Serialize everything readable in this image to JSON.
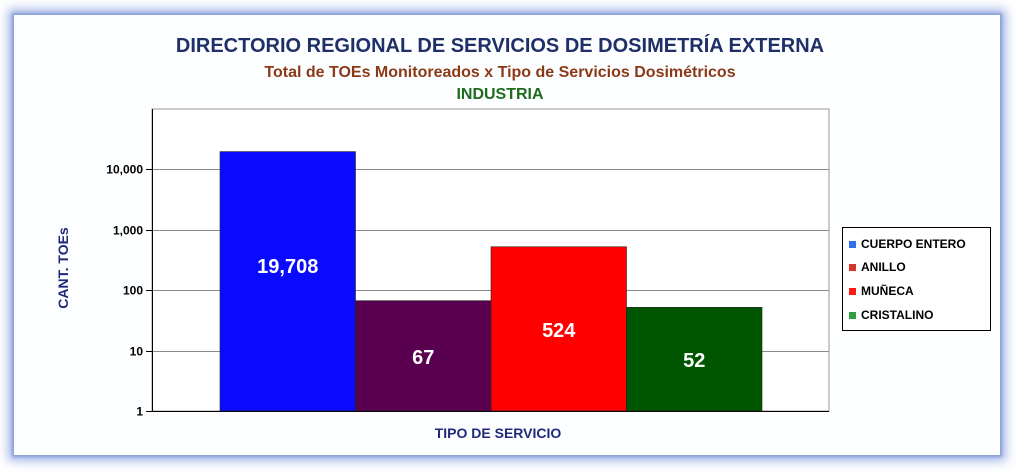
{
  "chart_data": {
    "type": "bar",
    "title": "DIRECTORIO REGIONAL DE SERVICIOS DE DOSIMETRÍA EXTERNA",
    "subtitle": "Total de TOEs Monitoreados x Tipo de Servicios Dosimétricos",
    "subtitle2": "INDUSTRIA",
    "xlabel": "TIPO DE SERVICIO",
    "ylabel": "CANT. TOEs",
    "yscale": "log",
    "ylim": [
      1,
      100000
    ],
    "yticks": [
      1,
      10,
      100,
      1000,
      10000
    ],
    "ytick_labels": [
      "1",
      "10",
      "100",
      "1,000",
      "10,000"
    ],
    "grid": true,
    "legend_position": "right",
    "series": [
      {
        "name": "CUERPO ENTERO",
        "value": 19708,
        "label": "19,708",
        "color": "#0a0aff"
      },
      {
        "name": "ANILLO",
        "value": 67,
        "label": "67",
        "color": "#5a0050"
      },
      {
        "name": "MUÑECA",
        "value": 524,
        "label": "524",
        "color": "#ff0000"
      },
      {
        "name": "CRISTALINO",
        "value": 52,
        "label": "52",
        "color": "#005500"
      }
    ],
    "legend_swatch_colors": [
      "#2e6ff0",
      "#d8342a",
      "#ff1a1a",
      "#2f9e3f"
    ]
  }
}
